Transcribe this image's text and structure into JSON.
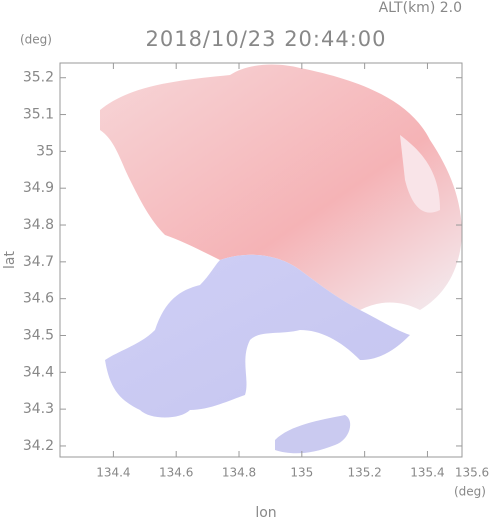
{
  "chart_data": {
    "type": "map",
    "title": "2018/10/23 20:44:00",
    "subtitle": "ALT(km) 2.0",
    "x_label": "lon",
    "x_unit": "(deg)",
    "y_label": "lat",
    "y_unit": "(deg)",
    "xlim": [
      134.23,
      135.51
    ],
    "ylim": [
      34.17,
      35.24
    ],
    "xticks": [
      134.4,
      134.6,
      134.8,
      135.0,
      135.2,
      135.4,
      135.6
    ],
    "yticks": [
      34.2,
      34.3,
      34.4,
      34.5,
      34.6,
      34.7,
      34.8,
      34.9,
      35.0,
      35.1,
      35.2
    ]
  }
}
